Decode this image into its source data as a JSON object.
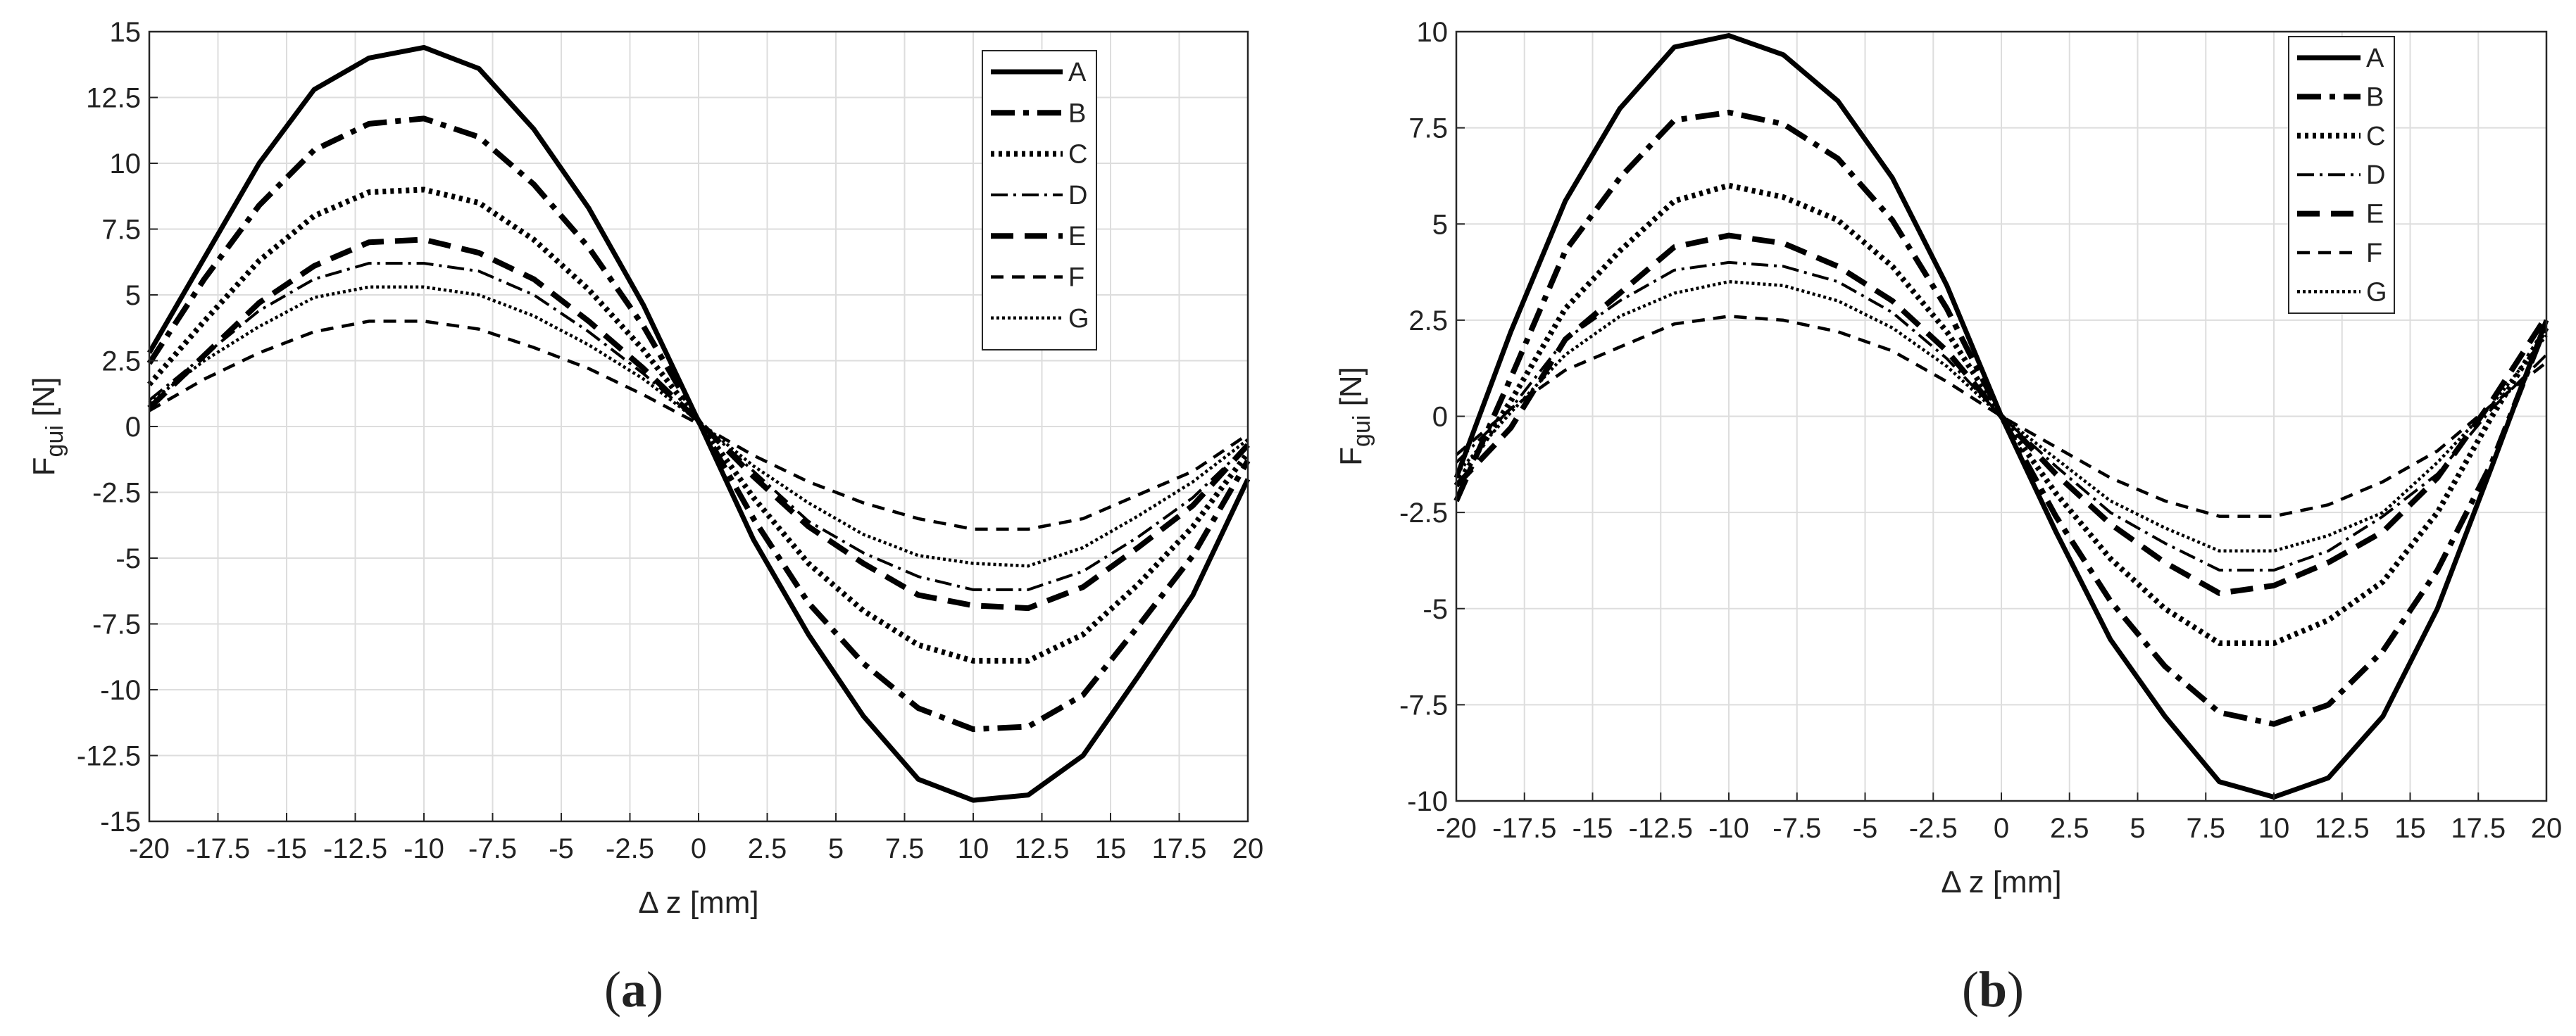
{
  "figure": {
    "line_color": "#000000",
    "grid_color": "#dddddd",
    "axis_color": "#262626"
  },
  "chart_data": [
    {
      "type": "line",
      "panel_label": "(a)",
      "panel_letter": "a",
      "ylabel_main": "F",
      "ylabel_sub": "gui",
      "ylabel_unit": "[N]",
      "xlabel": "Δ z [mm]",
      "xlim": [
        -20,
        20
      ],
      "ylim": [
        -15,
        15
      ],
      "grid": true,
      "legend_placement": "top-right",
      "xticks": [
        -20,
        -17.5,
        -15,
        -12.5,
        -10,
        -7.5,
        -5,
        -2.5,
        0,
        2.5,
        5,
        7.5,
        10,
        12.5,
        15,
        17.5,
        20
      ],
      "yticks": [
        -15,
        -12.5,
        -10,
        -7.5,
        -5,
        -2.5,
        0,
        2.5,
        5,
        7.5,
        10,
        12.5,
        15
      ],
      "x": [
        -20,
        -18,
        -16,
        -14,
        -12,
        -10,
        -8,
        -6,
        -4,
        -2,
        0,
        2,
        4,
        6,
        8,
        10,
        12,
        14,
        16,
        18,
        20
      ],
      "series": [
        {
          "name": "A",
          "values": [
            2.8,
            6.4,
            10.0,
            12.8,
            14.0,
            14.4,
            13.6,
            11.3,
            8.3,
            4.6,
            0.2,
            -4.3,
            -7.9,
            -11.0,
            -13.4,
            -14.2,
            -14.0,
            -12.5,
            -9.5,
            -6.4,
            -2.0
          ]
        },
        {
          "name": "B",
          "values": [
            2.4,
            5.6,
            8.4,
            10.5,
            11.5,
            11.7,
            11.0,
            9.2,
            6.8,
            3.8,
            0.2,
            -3.5,
            -6.7,
            -9.0,
            -10.7,
            -11.5,
            -11.4,
            -10.2,
            -7.6,
            -4.9,
            -1.3
          ]
        },
        {
          "name": "C",
          "values": [
            1.6,
            4.0,
            6.3,
            8.0,
            8.9,
            9.0,
            8.5,
            7.1,
            5.2,
            2.9,
            0.2,
            -2.7,
            -5.2,
            -7.0,
            -8.3,
            -8.9,
            -8.9,
            -7.9,
            -6.0,
            -3.8,
            -1.0
          ]
        },
        {
          "name": "D",
          "values": [
            1.0,
            2.7,
            4.4,
            5.6,
            6.2,
            6.2,
            5.9,
            5.0,
            3.6,
            2.0,
            0.2,
            -1.7,
            -3.6,
            -4.8,
            -5.7,
            -6.2,
            -6.2,
            -5.5,
            -4.2,
            -2.7,
            -0.7
          ]
        },
        {
          "name": "E",
          "values": [
            0.7,
            2.7,
            4.7,
            6.1,
            7.0,
            7.1,
            6.6,
            5.6,
            4.0,
            2.2,
            0.2,
            -1.9,
            -3.8,
            -5.2,
            -6.4,
            -6.8,
            -6.9,
            -6.1,
            -4.6,
            -3.0,
            -0.7
          ]
        },
        {
          "name": "F",
          "values": [
            0.6,
            1.8,
            2.8,
            3.6,
            4.0,
            4.0,
            3.7,
            3.0,
            2.2,
            1.2,
            0.1,
            -1.1,
            -2.1,
            -2.9,
            -3.5,
            -3.9,
            -3.9,
            -3.5,
            -2.6,
            -1.7,
            -0.3
          ]
        },
        {
          "name": "G",
          "values": [
            0.9,
            2.5,
            3.8,
            4.9,
            5.3,
            5.3,
            5.0,
            4.2,
            3.1,
            1.8,
            0.2,
            -1.5,
            -2.9,
            -4.1,
            -4.9,
            -5.2,
            -5.3,
            -4.6,
            -3.4,
            -2.1,
            -0.5
          ]
        }
      ]
    },
    {
      "type": "line",
      "panel_label": "(b)",
      "panel_letter": "b",
      "ylabel_main": "F",
      "ylabel_sub": "gui",
      "ylabel_unit": "[N]",
      "xlabel": "Δ z [mm]",
      "xlim": [
        -20,
        20
      ],
      "ylim": [
        -10,
        10
      ],
      "grid": true,
      "legend_placement": "top-right",
      "xticks": [
        -20,
        -17.5,
        -15,
        -12.5,
        -10,
        -7.5,
        -5,
        -2.5,
        0,
        2.5,
        5,
        7.5,
        10,
        12.5,
        15,
        17.5,
        20
      ],
      "yticks": [
        -10,
        -7.5,
        -5,
        -2.5,
        0,
        2.5,
        5,
        7.5,
        10
      ],
      "x": [
        -20,
        -18,
        -16,
        -14,
        -12,
        -10,
        -8,
        -6,
        -4,
        -2,
        0,
        2,
        4,
        6,
        8,
        10,
        12,
        14,
        16,
        18,
        20
      ],
      "series": [
        {
          "name": "A",
          "values": [
            -1.6,
            2.2,
            5.6,
            8.0,
            9.6,
            9.9,
            9.4,
            8.2,
            6.2,
            3.4,
            0.0,
            -3.0,
            -5.8,
            -7.8,
            -9.5,
            -9.9,
            -9.4,
            -7.8,
            -5.0,
            -1.3,
            2.5
          ]
        },
        {
          "name": "B",
          "values": [
            -2.2,
            1.0,
            4.3,
            6.2,
            7.7,
            7.9,
            7.6,
            6.7,
            5.1,
            2.8,
            0.0,
            -2.6,
            -4.8,
            -6.5,
            -7.7,
            -8.0,
            -7.5,
            -6.1,
            -4.0,
            -1.2,
            2.4
          ]
        },
        {
          "name": "C",
          "values": [
            -1.8,
            0.4,
            2.8,
            4.3,
            5.6,
            6.0,
            5.7,
            5.1,
            3.9,
            2.2,
            0.0,
            -2.0,
            -3.7,
            -5.0,
            -5.9,
            -5.9,
            -5.3,
            -4.3,
            -2.5,
            0.0,
            2.3
          ]
        },
        {
          "name": "D",
          "values": [
            -1.2,
            0.2,
            2.0,
            3.0,
            3.8,
            4.0,
            3.9,
            3.5,
            2.7,
            1.5,
            0.0,
            -1.3,
            -2.5,
            -3.3,
            -4.0,
            -4.0,
            -3.5,
            -2.6,
            -1.5,
            0.2,
            1.6
          ]
        },
        {
          "name": "E",
          "values": [
            -1.8,
            -0.3,
            2.0,
            3.2,
            4.4,
            4.7,
            4.5,
            3.9,
            3.0,
            1.7,
            0.0,
            -1.5,
            -2.8,
            -3.8,
            -4.6,
            -4.4,
            -3.8,
            -3.0,
            -1.6,
            0.4,
            2.6
          ]
        },
        {
          "name": "F",
          "values": [
            -1.0,
            0.2,
            1.2,
            1.8,
            2.4,
            2.6,
            2.5,
            2.2,
            1.7,
            0.9,
            0.0,
            -0.8,
            -1.6,
            -2.2,
            -2.6,
            -2.6,
            -2.3,
            -1.7,
            -0.9,
            0.3,
            1.4
          ]
        },
        {
          "name": "G",
          "values": [
            -1.5,
            0.1,
            1.6,
            2.6,
            3.2,
            3.5,
            3.4,
            3.0,
            2.3,
            1.3,
            0.0,
            -1.1,
            -2.2,
            -2.9,
            -3.5,
            -3.5,
            -3.1,
            -2.5,
            -1.2,
            0.3,
            2.1
          ]
        }
      ]
    }
  ]
}
